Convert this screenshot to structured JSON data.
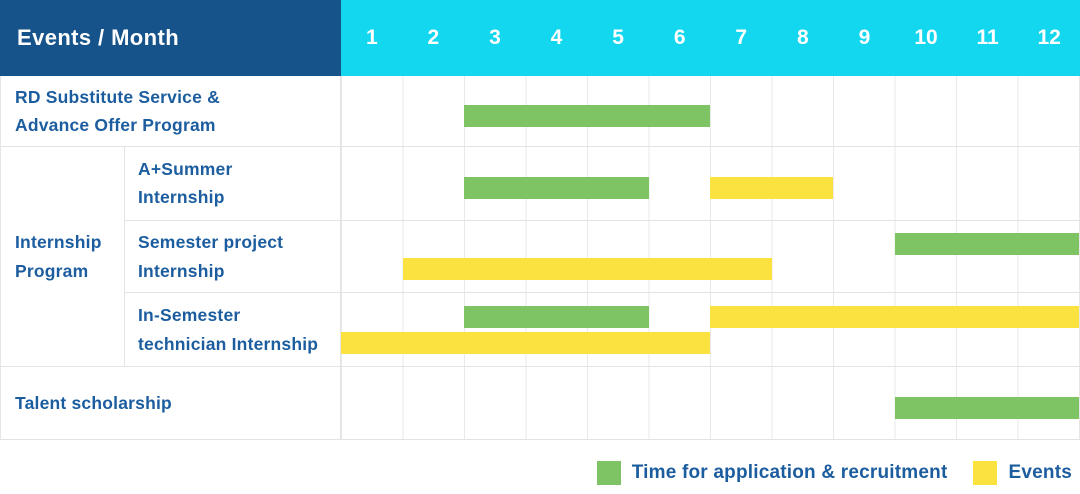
{
  "header": {
    "title": "Events / Month",
    "months": [
      "1",
      "2",
      "3",
      "4",
      "5",
      "6",
      "7",
      "8",
      "9",
      "10",
      "11",
      "12"
    ]
  },
  "colors": {
    "green": "#7EC464",
    "yellow": "#FCE23E",
    "header_blue": "#15538A",
    "header_cyan": "#12D7EE",
    "label_blue": "#1C5D9F"
  },
  "rows": {
    "rd": {
      "label1": "RD Substitute Service &",
      "label2": "Advance Offer Program",
      "bars": [
        {
          "color": "green",
          "start": 3,
          "end": 7,
          "lane": "center"
        }
      ]
    },
    "group_label1": "Internship",
    "group_label2": "Program",
    "a_summer": {
      "label1": "A+Summer",
      "label2": "Internship",
      "bars": [
        {
          "color": "green",
          "start": 3,
          "end": 6,
          "lane": "center"
        },
        {
          "color": "yellow",
          "start": 7,
          "end": 9,
          "lane": "center"
        }
      ]
    },
    "semester_project": {
      "label1": "Semester project",
      "label2": "Internship",
      "bars": [
        {
          "color": "green",
          "start": 10,
          "end": 13,
          "lane": "top"
        },
        {
          "color": "yellow",
          "start": 2,
          "end": 8,
          "lane": "bottom"
        }
      ]
    },
    "in_semester": {
      "label1": "In-Semester",
      "label2": "technician Internship",
      "bars": [
        {
          "color": "green",
          "start": 3,
          "end": 6,
          "lane": "top"
        },
        {
          "color": "yellow",
          "start": 7,
          "end": 13,
          "lane": "top"
        },
        {
          "color": "yellow",
          "start": 1,
          "end": 7,
          "lane": "bottom"
        }
      ]
    },
    "talent": {
      "label": "Talent scholarship",
      "bars": [
        {
          "color": "green",
          "start": 10,
          "end": 13,
          "lane": "center"
        }
      ]
    }
  },
  "legend": {
    "application": "Time for application & recruitment",
    "events": "Events"
  },
  "chart_data": {
    "type": "gantt",
    "title": "Events / Month",
    "x_axis": {
      "label": "Month",
      "ticks": [
        1,
        2,
        3,
        4,
        5,
        6,
        7,
        8,
        9,
        10,
        11,
        12
      ],
      "range": [
        1,
        12
      ]
    },
    "legend": [
      {
        "name": "Time for application & recruitment",
        "color": "#7EC464"
      },
      {
        "name": "Events",
        "color": "#FCE23E"
      }
    ],
    "tasks": [
      {
        "group": "",
        "name": "RD Substitute Service & Advance Offer Program",
        "application_recruitment_months": [
          [
            3,
            6
          ]
        ],
        "event_months": []
      },
      {
        "group": "Internship Program",
        "name": "A+Summer Internship",
        "application_recruitment_months": [
          [
            3,
            5
          ]
        ],
        "event_months": [
          [
            7,
            8
          ]
        ]
      },
      {
        "group": "Internship Program",
        "name": "Semester project Internship",
        "application_recruitment_months": [
          [
            10,
            12
          ]
        ],
        "event_months": [
          [
            2,
            7
          ]
        ]
      },
      {
        "group": "Internship Program",
        "name": "In-Semester technician Internship",
        "application_recruitment_months": [
          [
            3,
            5
          ]
        ],
        "event_months": [
          [
            1,
            6
          ],
          [
            7,
            12
          ]
        ]
      },
      {
        "group": "",
        "name": "Talent scholarship",
        "application_recruitment_months": [
          [
            10,
            12
          ]
        ],
        "event_months": []
      }
    ],
    "grid": true,
    "legend_position": "bottom-right"
  }
}
